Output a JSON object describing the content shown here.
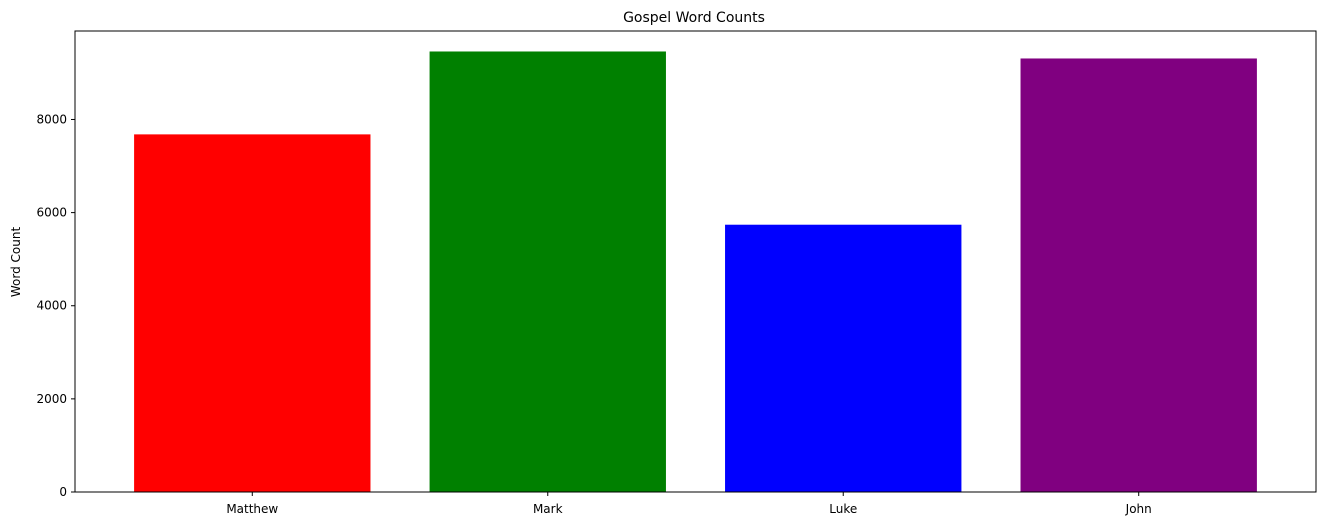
{
  "chart_data": {
    "type": "bar",
    "title": "Gospel Word Counts",
    "xlabel": "",
    "ylabel": "Word Count",
    "categories": [
      "Matthew",
      "Mark",
      "Luke",
      "John"
    ],
    "values": [
      7680,
      9460,
      5740,
      9310
    ],
    "colors": [
      "#ff0000",
      "#008000",
      "#0000ff",
      "#800080"
    ],
    "ylim": [
      0,
      9900
    ],
    "yticks": [
      0,
      2000,
      4000,
      6000,
      8000
    ],
    "ytick_labels": [
      "0",
      "2000",
      "4000",
      "6000",
      "8000"
    ],
    "grid": false,
    "legend": "none"
  }
}
